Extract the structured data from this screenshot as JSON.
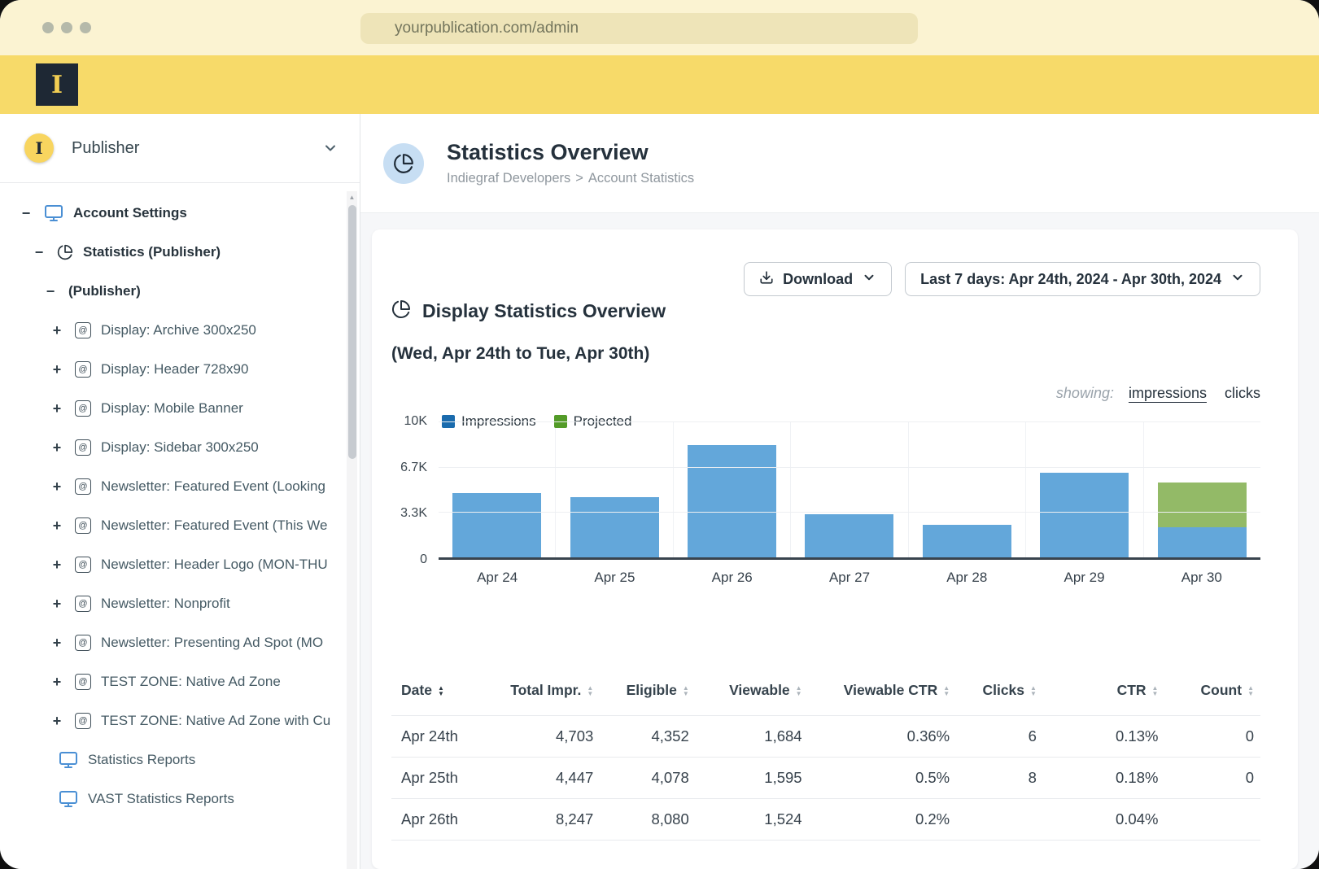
{
  "browser": {
    "url": "yourpublication.com/admin"
  },
  "branding": {
    "logo_letter": "I"
  },
  "sidebar": {
    "publisher_label": "Publisher",
    "avatar_letter": "I",
    "tree": [
      {
        "label": "Account Settings",
        "icon": "monitor",
        "toggle": "minus",
        "level": 0,
        "bold": true
      },
      {
        "label": "Statistics (Publisher)",
        "icon": "pie",
        "toggle": "minus",
        "level": 1,
        "bold": true
      },
      {
        "label": "(Publisher)",
        "icon": null,
        "toggle": "minus",
        "level": 2,
        "bold": true
      },
      {
        "label": "Display: Archive 300x250",
        "icon": "ad",
        "toggle": "plus",
        "level": 3,
        "bold": false
      },
      {
        "label": "Display: Header 728x90",
        "icon": "ad",
        "toggle": "plus",
        "level": 3,
        "bold": false
      },
      {
        "label": "Display: Mobile Banner",
        "icon": "ad",
        "toggle": "plus",
        "level": 3,
        "bold": false
      },
      {
        "label": "Display: Sidebar 300x250",
        "icon": "ad",
        "toggle": "plus",
        "level": 3,
        "bold": false
      },
      {
        "label": "Newsletter: Featured Event (Looking",
        "icon": "ad",
        "toggle": "plus",
        "level": 3,
        "bold": false
      },
      {
        "label": "Newsletter: Featured Event (This We",
        "icon": "ad",
        "toggle": "plus",
        "level": 3,
        "bold": false
      },
      {
        "label": "Newsletter: Header Logo (MON-THU",
        "icon": "ad",
        "toggle": "plus",
        "level": 3,
        "bold": false
      },
      {
        "label": "Newsletter: Nonprofit",
        "icon": "ad",
        "toggle": "plus",
        "level": 3,
        "bold": false
      },
      {
        "label": "Newsletter: Presenting Ad Spot (MO",
        "icon": "ad",
        "toggle": "plus",
        "level": 3,
        "bold": false
      },
      {
        "label": "TEST ZONE: Native Ad Zone",
        "icon": "ad",
        "toggle": "plus",
        "level": 3,
        "bold": false
      },
      {
        "label": "TEST ZONE: Native Ad Zone with Cu",
        "icon": "ad",
        "toggle": "plus",
        "level": 3,
        "bold": false
      },
      {
        "label": "Statistics Reports",
        "icon": "monitor",
        "toggle": null,
        "level": 4,
        "bold": false
      },
      {
        "label": "VAST Statistics Reports",
        "icon": "monitor",
        "toggle": null,
        "level": 4,
        "bold": false
      }
    ]
  },
  "header": {
    "title": "Statistics Overview",
    "breadcrumb": [
      "Indiegraf Developers",
      "Account Statistics"
    ],
    "breadcrumb_separator": ">"
  },
  "toolbar": {
    "download_label": "Download",
    "date_range_label": "Last 7 days: Apr 24th, 2024 - Apr 30th, 2024"
  },
  "panel": {
    "title": "Display Statistics Overview",
    "subtitle": "(Wed, Apr 24th to Tue, Apr 30th)",
    "showing_label": "showing:",
    "showing_options": [
      {
        "label": "impressions",
        "active": true
      },
      {
        "label": "clicks",
        "active": false
      }
    ]
  },
  "chart_data": {
    "type": "bar",
    "stacked": true,
    "title": "Display Statistics Overview",
    "categories": [
      "Apr 24",
      "Apr 25",
      "Apr 26",
      "Apr 27",
      "Apr 28",
      "Apr 29",
      "Apr 30"
    ],
    "series": [
      {
        "name": "Impressions",
        "color": "#63A7DA",
        "values": [
          4703,
          4447,
          8247,
          3200,
          2400,
          6200,
          2200
        ]
      },
      {
        "name": "Projected",
        "color": "#93BA67",
        "values": [
          0,
          0,
          0,
          0,
          0,
          0,
          3300
        ]
      }
    ],
    "ylim": [
      0,
      10000
    ],
    "yticks": [
      {
        "label": "10K",
        "pos": 0
      },
      {
        "label": "6.7K",
        "pos": 33.3
      },
      {
        "label": "3.3K",
        "pos": 66.7
      },
      {
        "label": "0",
        "pos": 100
      }
    ],
    "legend": [
      {
        "label": "Impressions",
        "color": "#1A6BAD"
      },
      {
        "label": "Projected",
        "color": "#539B28"
      }
    ],
    "legend_position": "top-left",
    "grid": true
  },
  "table": {
    "columns": [
      "Date",
      "Total Impr.",
      "Eligible",
      "Viewable",
      "Viewable CTR",
      "Clicks",
      "CTR",
      "Count"
    ],
    "sorted_column": "Date",
    "rows": [
      [
        "Apr 24th",
        "4,703",
        "4,352",
        "1,684",
        "0.36%",
        "6",
        "0.13%",
        "0"
      ],
      [
        "Apr 25th",
        "4,447",
        "4,078",
        "1,595",
        "0.5%",
        "8",
        "0.18%",
        "0"
      ],
      [
        "Apr 26th",
        "8,247",
        "8,080",
        "1,524",
        "0.2%",
        "",
        "0.04%",
        ""
      ]
    ]
  },
  "colors": {
    "brand_yellow": "#F7DA69",
    "browser_cream": "#FBF3D2",
    "bar_blue": "#63A7DA",
    "bar_green": "#93BA67",
    "icon_blue": "#4A8FD4"
  }
}
